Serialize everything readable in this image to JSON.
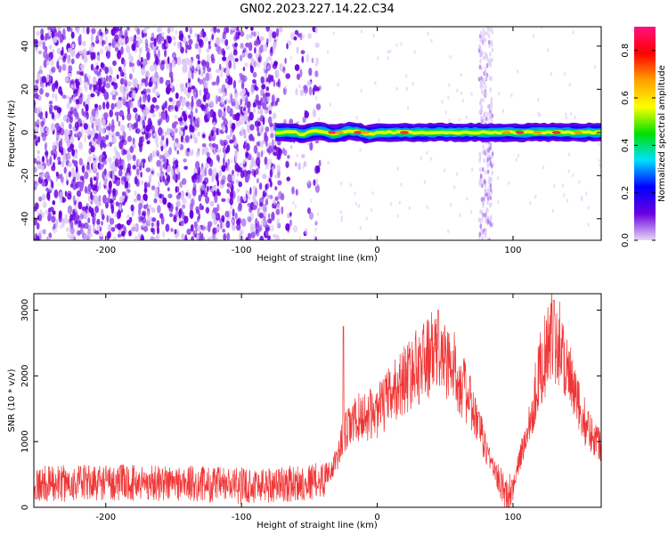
{
  "title": "GN02.2023.227.14.22.C34",
  "chart_data": [
    {
      "type": "heatmap",
      "xlabel": "Height of straight line (km)",
      "ylabel": "Frequency (Hz)",
      "xlim": [
        -253,
        165
      ],
      "ylim": [
        -50,
        49
      ],
      "xticks": [
        -200,
        -100,
        0,
        100
      ],
      "yticks": [
        -40,
        -20,
        0,
        20,
        40
      ],
      "grid": false,
      "signal_band": {
        "x_start": -75,
        "x_end": 165,
        "center_freq": 0,
        "half_width": 3
      },
      "noise_region": {
        "x_start": -253,
        "x_end": -72
      },
      "vertical_streak": {
        "x": 80,
        "half_width": 5
      },
      "hot_spots_x": [
        -33,
        -28,
        -14,
        -9,
        20,
        95,
        105,
        118,
        132,
        148
      ],
      "colorbar": {
        "label": "Normalized spectral amplitude",
        "range": [
          0.0,
          0.9
        ],
        "ticks": [
          0.0,
          0.2,
          0.4,
          0.6,
          0.8
        ],
        "stops": [
          "#e9d9f7",
          "#6a00e0",
          "#0000ff",
          "#00e0ff",
          "#00e000",
          "#ffff00",
          "#ffa000",
          "#ff0000",
          "#ff1080"
        ]
      }
    },
    {
      "type": "line",
      "xlabel": "Height of straight line (km)",
      "ylabel": "SNR (10 * v/v)",
      "xlim": [
        -253,
        165
      ],
      "ylim": [
        0,
        3250
      ],
      "xticks": [
        -200,
        -100,
        0,
        100
      ],
      "yticks": [
        0,
        1000,
        2000,
        3000
      ],
      "grid": false,
      "color": "#f03535",
      "series": [
        {
          "x": [
            -253,
            -200,
            -150,
            -100,
            -60,
            -40,
            -30,
            -25,
            -15,
            0,
            20,
            35,
            45,
            60,
            70,
            80,
            90,
            95,
            100,
            110,
            120,
            130,
            135,
            145,
            155,
            165
          ],
          "y": [
            350,
            380,
            370,
            330,
            360,
            420,
            700,
            1100,
            1350,
            1450,
            1950,
            2250,
            2400,
            2000,
            1500,
            900,
            400,
            150,
            350,
            1100,
            2100,
            2650,
            2500,
            1700,
            1200,
            950
          ]
        }
      ],
      "peaks": [
        {
          "x": -25,
          "y": 2750
        },
        {
          "x": 45,
          "y": 3000
        },
        {
          "x": 130,
          "y": 3150
        }
      ]
    }
  ]
}
